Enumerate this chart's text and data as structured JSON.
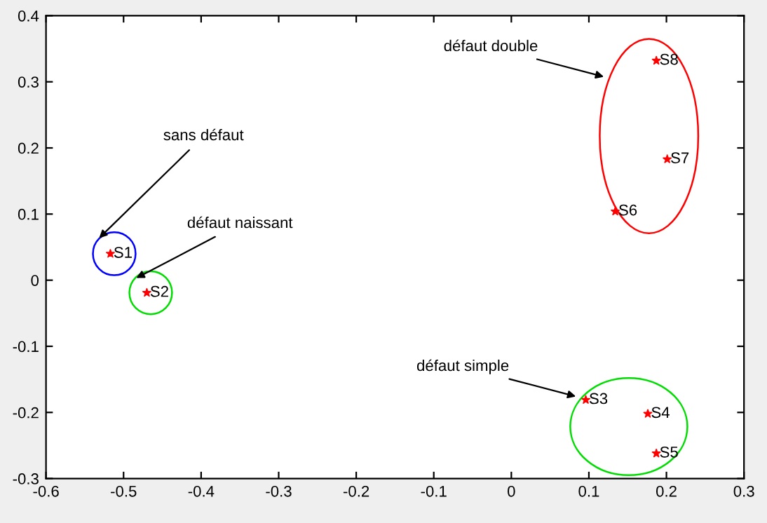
{
  "chart_data": {
    "type": "scatter",
    "marker": "star",
    "grid": false,
    "legend": false,
    "xlim": [
      -0.6,
      0.3
    ],
    "ylim": [
      -0.3,
      0.4
    ],
    "xticks": [
      -0.6,
      -0.5,
      -0.4,
      -0.3,
      -0.2,
      -0.1,
      0,
      0.1,
      0.2,
      0.3
    ],
    "yticks": [
      -0.3,
      -0.2,
      -0.1,
      0,
      0.1,
      0.2,
      0.3,
      0.4
    ],
    "series": [
      {
        "color": "#ff0000",
        "x": [
          -0.517
        ],
        "values": [
          0.04
        ],
        "value_labels": [
          "S1"
        ]
      },
      {
        "color": "#ff0000",
        "x": [
          -0.47
        ],
        "values": [
          -0.019
        ],
        "value_labels": [
          "S2"
        ]
      },
      {
        "color": "#ff0000",
        "x": [
          0.096,
          0.176,
          0.187
        ],
        "values": [
          -0.181,
          -0.202,
          -0.262
        ],
        "value_labels": [
          "S3",
          "S4",
          "S5"
        ]
      },
      {
        "color": "#ff0000",
        "x": [
          0.134,
          0.201,
          0.187
        ],
        "values": [
          0.104,
          0.183,
          0.332
        ],
        "value_labels": [
          "S6",
          "S7",
          "S8"
        ]
      }
    ],
    "annotations": [
      "sans défaut",
      "défaut naissant",
      "défaut simple",
      "défaut double"
    ]
  }
}
